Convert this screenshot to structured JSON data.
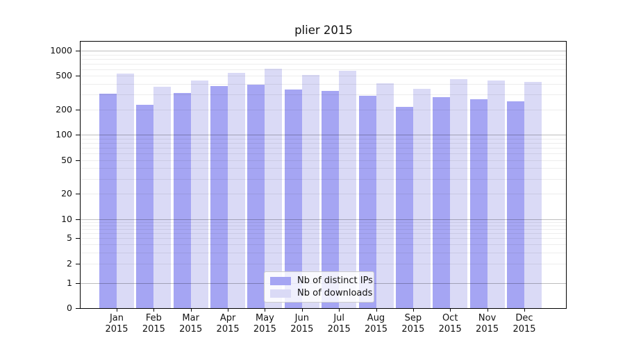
{
  "title": "plier 2015",
  "chart_data": {
    "type": "bar",
    "title": "plier 2015",
    "categories": [
      "Jan",
      "Feb",
      "Mar",
      "Apr",
      "May",
      "Jun",
      "Jul",
      "Aug",
      "Sep",
      "Oct",
      "Nov",
      "Dec"
    ],
    "year_label": "2015",
    "series": [
      {
        "name": "Nb of distinct IPs",
        "color": "#a5a5f3",
        "values": [
          305,
          228,
          315,
          378,
          392,
          345,
          330,
          292,
          215,
          280,
          265,
          250
        ]
      },
      {
        "name": "Nb of downloads",
        "color": "#dadaf6",
        "values": [
          535,
          370,
          445,
          545,
          605,
          510,
          580,
          408,
          350,
          460,
          440,
          425
        ]
      }
    ],
    "xlabel": "",
    "ylabel": "",
    "yscale": "symlog",
    "ylim": [
      0,
      1280
    ],
    "ytick_labels": [
      "1000",
      "500",
      "200",
      "100",
      "50",
      "20",
      "10",
      "5",
      "2",
      "1",
      "0"
    ],
    "ytick_values": [
      1000,
      500,
      200,
      100,
      50,
      20,
      10,
      5,
      2,
      1,
      0
    ],
    "major_grid_values": [
      1,
      10,
      100,
      1000
    ],
    "minor_grid_values": [
      2,
      3,
      4,
      5,
      6,
      7,
      8,
      9,
      20,
      30,
      40,
      50,
      60,
      70,
      80,
      90,
      200,
      300,
      400,
      500,
      600,
      700,
      800,
      900
    ],
    "grid": true,
    "legend_position": "lower center"
  },
  "colors": {
    "bar_dark": "#a5a5f3",
    "bar_light": "#dadaf6",
    "major_grid": "rgba(0,0,0,0.26)",
    "minor_grid": "rgba(0,0,0,0.07)",
    "axis": "#000000",
    "text": "#111111",
    "legend_border": "#cccccc"
  }
}
